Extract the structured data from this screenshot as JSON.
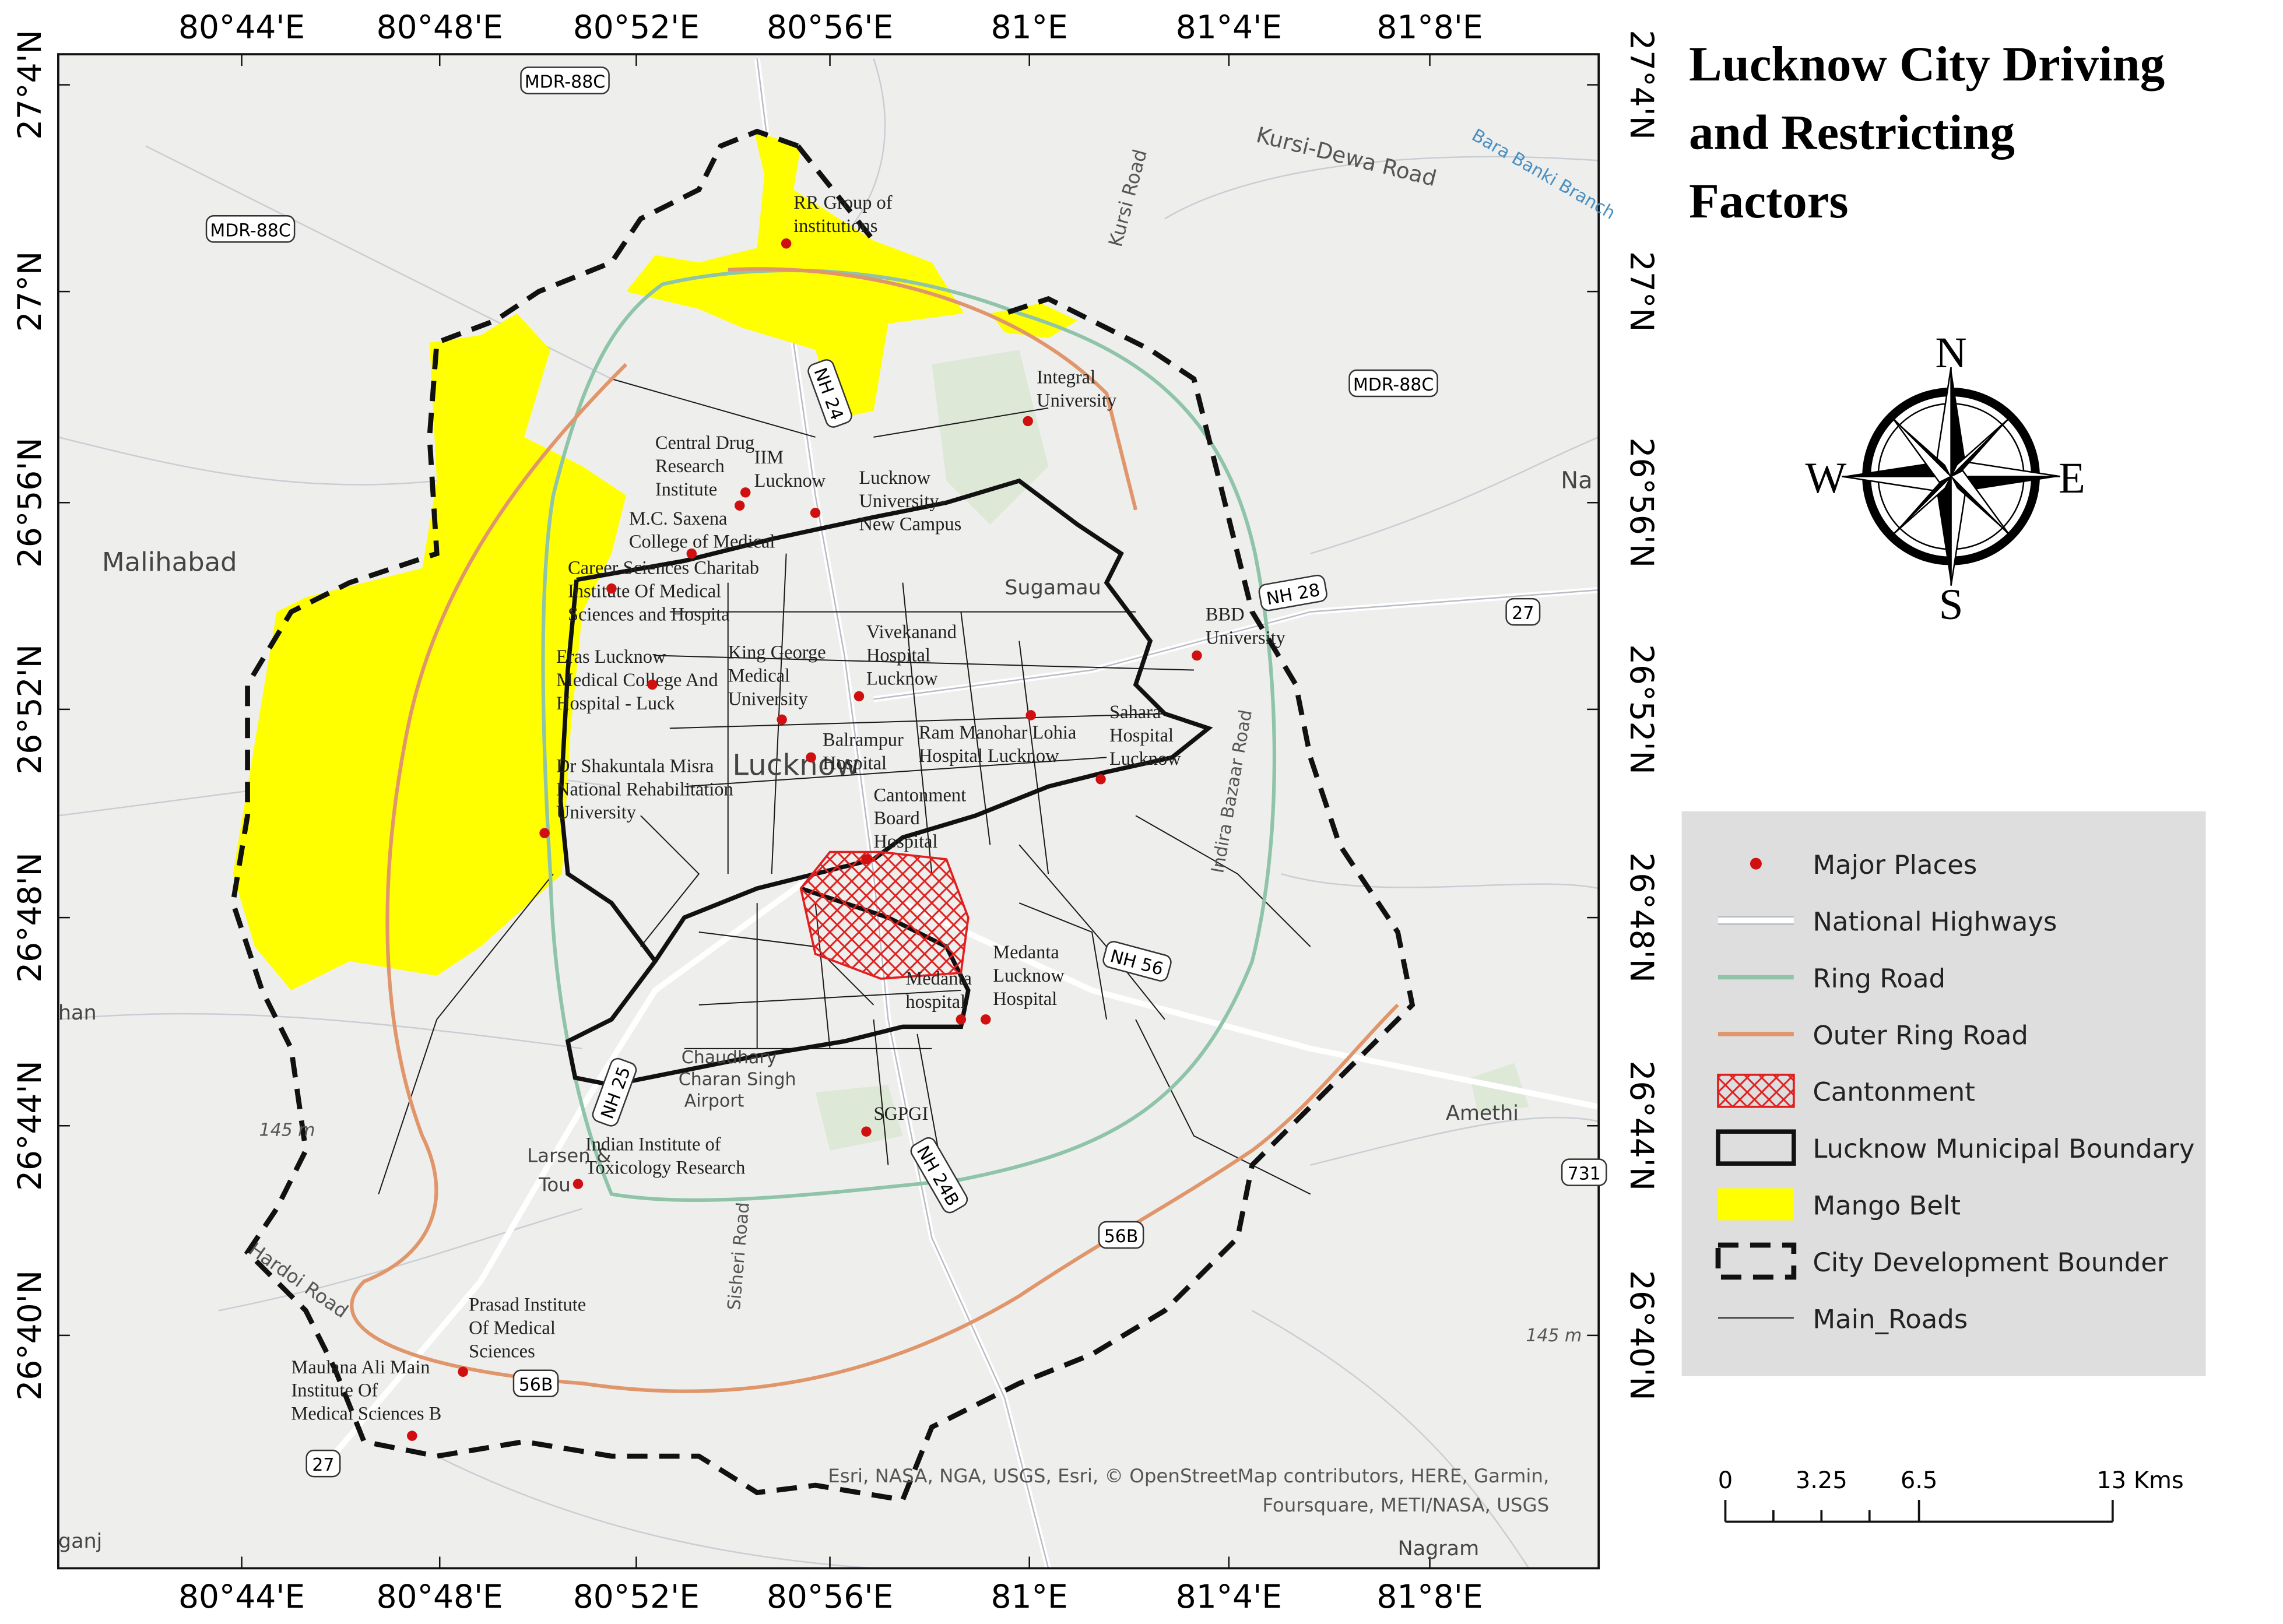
{
  "title_lines": [
    "Lucknow City Driving",
    "and Restricting",
    "Factors"
  ],
  "longitude_labels": [
    "80°44'E",
    "80°48'E",
    "80°52'E",
    "80°56'E",
    "81°E",
    "81°4'E",
    "81°8'E"
  ],
  "latitude_labels": [
    "27°4'N",
    "27°N",
    "26°56'N",
    "26°52'N",
    "26°48'N",
    "26°44'N",
    "26°40'N"
  ],
  "compass": {
    "north": "N",
    "east": "E",
    "south": "S",
    "west": "W"
  },
  "legend": [
    "Major Places",
    "National Highways",
    "Ring Road",
    "Outer Ring Road",
    "Cantonment",
    "Lucknow Municipal Boundary",
    "Mango Belt",
    "City Development Bounder",
    "Main_Roads"
  ],
  "scale_bar": [
    "0",
    "3.25",
    "6.5",
    "13 Kms"
  ],
  "places": [
    {
      "lines": [
        "RR Group of",
        "institutions"
      ]
    },
    {
      "lines": [
        "Integral",
        "University"
      ]
    },
    {
      "lines": [
        "Central Drug",
        "Research",
        "Institute"
      ]
    },
    {
      "lines": [
        "IIM",
        "Lucknow"
      ]
    },
    {
      "lines": [
        "Lucknow",
        "University-",
        "New Campus"
      ]
    },
    {
      "lines": [
        "M.C. Saxena",
        "College of Medical"
      ]
    },
    {
      "lines": [
        "Career Sciences Charitab",
        "Institute Of Medical",
        "Sciences and Hospita"
      ]
    },
    {
      "lines": [
        "BBD",
        "University"
      ]
    },
    {
      "lines": [
        "Eras Lucknow",
        "Medical College And",
        "Hospital - Luck"
      ]
    },
    {
      "lines": [
        "King George",
        "Medical",
        "University"
      ]
    },
    {
      "lines": [
        "Vivekanand",
        "Hospital",
        "Lucknow"
      ]
    },
    {
      "lines": [
        "Ram Manohar Lohia",
        "Hospital Lucknow"
      ]
    },
    {
      "lines": [
        "Sahara",
        "Hospital",
        "Lucknow"
      ]
    },
    {
      "lines": [
        "Balrampur",
        "Hospital"
      ]
    },
    {
      "lines": [
        "Dr Shakuntala Misra",
        "National Rehabilitation",
        "University"
      ]
    },
    {
      "lines": [
        "Cantonment",
        "Board",
        "Hospital"
      ]
    },
    {
      "lines": [
        "Medanta",
        "Lucknow",
        "Hospital"
      ]
    },
    {
      "lines": [
        "Medanta",
        "hospital"
      ]
    },
    {
      "lines": [
        "SGPGI"
      ]
    },
    {
      "lines": [
        "Indian Institute of",
        "Toxicology Research"
      ]
    },
    {
      "lines": [
        "Prasad Institute",
        "Of Medical",
        "Sciences"
      ]
    },
    {
      "lines": [
        "Maulana Ali Main",
        "Institute Of",
        "Medical Sciences B"
      ]
    }
  ],
  "area_labels": [
    "Malihabad",
    "Sugamau",
    "Lucknow",
    "Amethi",
    "Nagram",
    "Na",
    "han",
    "ganj",
    "Larsen &",
    "Tou",
    "Chaudhary",
    "Charan Singh",
    "Airport"
  ],
  "road_shields": [
    "MDR-88C",
    "MDR-88C",
    "MDR-88C",
    "NH 24",
    "NH 28",
    "NH 56",
    "NH 25",
    "NH 24B",
    "27",
    "27",
    "731",
    "56B",
    "56B"
  ],
  "road_names": [
    "Kursi-Dewa Road",
    "Kursi Road",
    "Indira Bazaar Road",
    "Hardoi Road",
    "Sisheri Road",
    "Bara Banki Branch"
  ],
  "elevation_labels": [
    "145 m",
    "145 m"
  ],
  "attribution": [
    "Esri, NASA, NGA, USGS, Esri, © OpenStreetMap contributors, HERE, Garmin,",
    "Foursquare, METI/NASA, USGS"
  ]
}
